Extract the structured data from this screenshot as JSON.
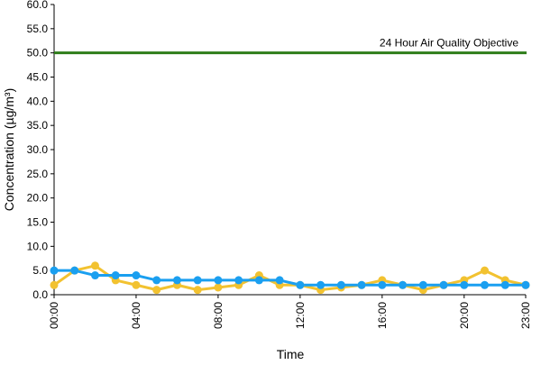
{
  "chart_data": {
    "type": "line",
    "xlabel": "Time",
    "ylabel": "Concentration (µg/m³)",
    "x": [
      "00:00",
      "01:00",
      "02:00",
      "03:00",
      "04:00",
      "05:00",
      "06:00",
      "07:00",
      "08:00",
      "09:00",
      "10:00",
      "11:00",
      "12:00",
      "13:00",
      "14:00",
      "15:00",
      "16:00",
      "17:00",
      "18:00",
      "19:00",
      "20:00",
      "21:00",
      "22:00",
      "23:00"
    ],
    "x_tick_labels": [
      "00:00",
      "04:00",
      "08:00",
      "12:00",
      "16:00",
      "20:00",
      "23:00"
    ],
    "ylim": [
      0,
      60
    ],
    "y_ticks": [
      "0.0",
      "5.0",
      "10.0",
      "15.0",
      "20.0",
      "25.0",
      "30.0",
      "35.0",
      "40.0",
      "45.0",
      "50.0",
      "55.0",
      "60.0"
    ],
    "grid": false,
    "series": [
      {
        "color": "#f2c230",
        "values": [
          2,
          5,
          6,
          3,
          2,
          1,
          2,
          1,
          1.5,
          2,
          4,
          2,
          2,
          1,
          1.5,
          2,
          3,
          2,
          1,
          2,
          3,
          5,
          3,
          2
        ]
      },
      {
        "color": "#1a9ff0",
        "values": [
          5,
          5,
          4,
          4,
          4,
          3,
          3,
          3,
          3,
          3,
          3,
          3,
          2,
          2,
          2,
          2,
          2,
          2,
          2,
          2,
          2,
          2,
          2,
          2
        ]
      }
    ],
    "reference_line": {
      "value": 50,
      "label": "24 Hour Air Quality Objective",
      "color": "#2e7d1a"
    }
  }
}
